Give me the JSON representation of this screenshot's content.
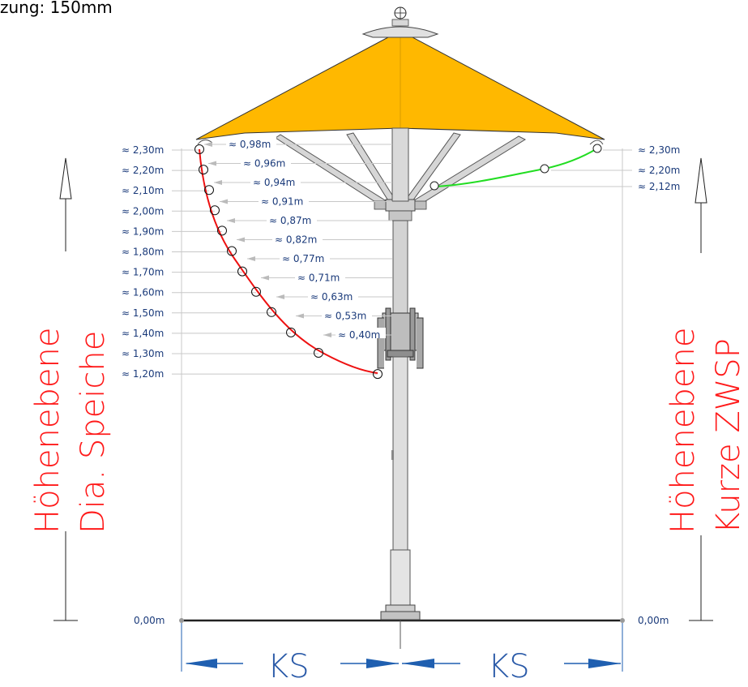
{
  "header_fragment": "zung: 150mm",
  "left": {
    "title_line1": "Höhenebene",
    "title_line2": "Dia. Speiche",
    "height_labels": [
      "≈ 2,30m",
      "≈ 2,20m",
      "≈ 2,10m",
      "≈ 2,00m",
      "≈ 1,90m",
      "≈ 1,80m",
      "≈ 1,70m",
      "≈ 1,60m",
      "≈ 1,50m",
      "≈ 1,40m",
      "≈ 1,30m",
      "≈ 1,20m"
    ],
    "distance_labels": [
      "≈ 0,98m",
      "≈ 0,96m",
      "≈ 0,94m",
      "≈ 0,91m",
      "≈ 0,87m",
      "≈ 0,82m",
      "≈ 0,77m",
      "≈ 0,71m",
      "≈ 0,63m",
      "≈ 0,53m",
      "≈ 0,40m"
    ],
    "ground_label": "0,00m"
  },
  "right": {
    "title_line1": "Höhenebene",
    "title_line2": "Kurze ZWSP",
    "height_labels": [
      "≈ 2,30m",
      "≈ 2,20m",
      "≈ 2,12m"
    ],
    "ground_label": "0,00m"
  },
  "bottom": {
    "left_label": "KS",
    "right_label": "KS"
  },
  "colors": {
    "canopy": "#ffb800",
    "diagonal_curve": "#ee1111",
    "short_curve": "#22dd22",
    "dimension_text": "#1a3a7a",
    "title_text": "#ff1a1a",
    "ks_arrows": "#1f5fb0"
  }
}
